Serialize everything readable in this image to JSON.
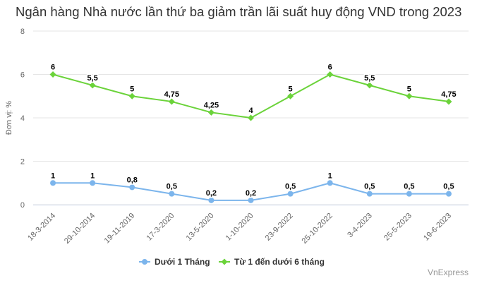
{
  "chart_data": {
    "type": "line",
    "title": "Ngân hàng Nhà nước lần thứ ba giảm trần lãi suất huy động VND trong 2023",
    "ylabel": "Đơn vị: %",
    "xlabel": "",
    "ylim": [
      0,
      8
    ],
    "yticks": [
      0,
      2,
      4,
      6,
      8
    ],
    "grid": true,
    "legend": "bottom-center",
    "categories": [
      "18-3-2014",
      "29-10-2014",
      "19-11-2019",
      "17-3-2020",
      "13-5-2020",
      "1-10-2020",
      "23-9-2022",
      "25-10-2022",
      "3-4-2023",
      "25-5-2023",
      "19-6-2023"
    ],
    "series": [
      {
        "name": "Dưới 1 Tháng",
        "color": "#7cb5ec",
        "values": [
          1,
          1,
          0.8,
          0.5,
          0.2,
          0.2,
          0.5,
          1,
          0.5,
          0.5,
          0.5
        ],
        "labels": [
          "1",
          "1",
          "0,8",
          "0,5",
          "0,2",
          "0,2",
          "0,5",
          "1",
          "0,5",
          "0,5",
          "0,5"
        ]
      },
      {
        "name": "Từ 1 đến dưới 6 tháng",
        "color": "#6bd33a",
        "values": [
          6,
          5.5,
          5,
          4.75,
          4.25,
          4,
          5,
          6,
          5.5,
          5,
          4.75
        ],
        "labels": [
          "6",
          "5,5",
          "5",
          "4,75",
          "4,25",
          "4",
          "5",
          "6",
          "5,5",
          "5",
          "4,75"
        ]
      }
    ]
  },
  "credit": "VnExpress"
}
